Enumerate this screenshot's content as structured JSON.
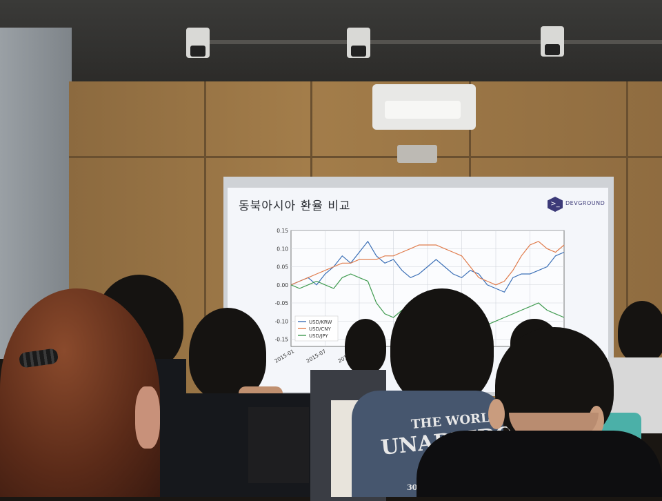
{
  "slide": {
    "title": "동북아시아 환율 비교",
    "logo_text": "DEVGROUND",
    "logo_icon": "terminal-prompt-icon"
  },
  "chart_data": {
    "type": "line",
    "title": "",
    "xlabel": "",
    "ylabel": "",
    "x_ticks": [
      "2015-01",
      "2015-07",
      "2016-01"
    ],
    "y_ticks": [
      "0.15",
      "0.10",
      "0.05",
      "0.00",
      "-0.05",
      "-0.10",
      "-0.15"
    ],
    "ylim": [
      -0.17,
      0.15
    ],
    "grid": true,
    "legend_position": "lower-left",
    "series": [
      {
        "name": "USD/KRW",
        "color": "#3b6fb6",
        "values": [
          0.0,
          0.01,
          0.02,
          0.0,
          0.03,
          0.05,
          0.08,
          0.06,
          0.09,
          0.12,
          0.08,
          0.06,
          0.07,
          0.04,
          0.02,
          0.03,
          0.05,
          0.07,
          0.05,
          0.03,
          0.02,
          0.04,
          0.03,
          0.0,
          -0.01,
          -0.02,
          0.02,
          0.03,
          0.03,
          0.04,
          0.05,
          0.08,
          0.09
        ]
      },
      {
        "name": "USD/CNY",
        "color": "#e07b4b",
        "values": [
          0.0,
          0.01,
          0.02,
          0.03,
          0.04,
          0.05,
          0.06,
          0.06,
          0.07,
          0.07,
          0.07,
          0.08,
          0.08,
          0.09,
          0.1,
          0.11,
          0.11,
          0.11,
          0.1,
          0.09,
          0.08,
          0.05,
          0.02,
          0.01,
          0.0,
          0.01,
          0.04,
          0.08,
          0.11,
          0.12,
          0.1,
          0.09,
          0.11
        ]
      },
      {
        "name": "USD/JPY",
        "color": "#3e9a4e",
        "values": [
          0.0,
          -0.01,
          0.0,
          0.01,
          0.0,
          -0.01,
          0.02,
          0.03,
          0.02,
          0.01,
          -0.05,
          -0.08,
          -0.09,
          -0.07,
          -0.06,
          -0.05,
          -0.06,
          -0.08,
          -0.07,
          -0.09,
          -0.08,
          -0.1,
          -0.09,
          -0.11,
          -0.1,
          -0.09,
          -0.08,
          -0.07,
          -0.06,
          -0.05,
          -0.07,
          -0.08,
          -0.09
        ]
      }
    ]
  },
  "shirt_print": {
    "line1": "THE WORL",
    "line2": "UNABRIDG",
    "line3": "300"
  }
}
